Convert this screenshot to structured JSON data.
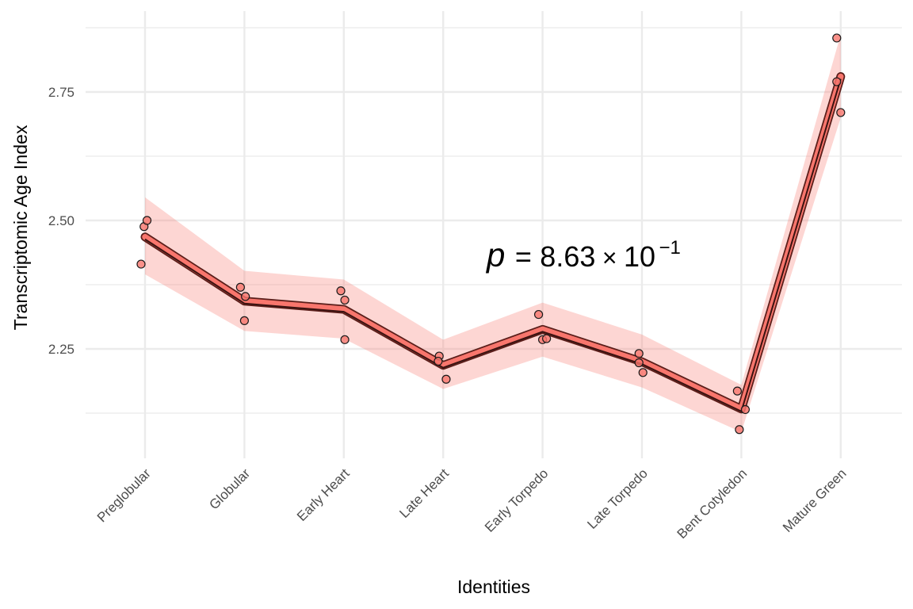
{
  "chart_data": {
    "type": "line",
    "xlabel": "Identities",
    "ylabel": "Transcriptomic Age Index",
    "categories": [
      "Preglobular",
      "Globular",
      "Early Heart",
      "Late Heart",
      "Early Torpedo",
      "Late Torpedo",
      "Bent Cotyledon",
      "Mature Green"
    ],
    "ylim": [
      2.08,
      2.92
    ],
    "yticks": [
      2.25,
      2.5,
      2.75
    ],
    "ytick_labels": [
      "2.25",
      "2.50",
      "2.75"
    ],
    "grid": true,
    "legend": "none",
    "mean": [
      2.468,
      2.343,
      2.327,
      2.218,
      2.288,
      2.225,
      2.133,
      2.78
    ],
    "ribbon_lower": [
      2.395,
      2.285,
      2.27,
      2.172,
      2.235,
      2.175,
      2.088,
      2.7
    ],
    "ribbon_upper": [
      2.545,
      2.402,
      2.385,
      2.268,
      2.34,
      2.278,
      2.18,
      2.862
    ],
    "points": [
      {
        "x": 0,
        "y": 2.415,
        "jitter": -0.04
      },
      {
        "x": 0,
        "y": 2.488,
        "jitter": -0.01
      },
      {
        "x": 0,
        "y": 2.5,
        "jitter": 0.02
      },
      {
        "x": 1,
        "y": 2.37,
        "jitter": -0.04
      },
      {
        "x": 1,
        "y": 2.352,
        "jitter": 0.01
      },
      {
        "x": 1,
        "y": 2.305,
        "jitter": 0.0
      },
      {
        "x": 2,
        "y": 2.363,
        "jitter": -0.03
      },
      {
        "x": 2,
        "y": 2.345,
        "jitter": 0.01
      },
      {
        "x": 2,
        "y": 2.268,
        "jitter": 0.01
      },
      {
        "x": 3,
        "y": 2.236,
        "jitter": -0.04
      },
      {
        "x": 3,
        "y": 2.226,
        "jitter": -0.05
      },
      {
        "x": 3,
        "y": 2.191,
        "jitter": 0.03
      },
      {
        "x": 4,
        "y": 2.317,
        "jitter": -0.04
      },
      {
        "x": 4,
        "y": 2.268,
        "jitter": 0.0
      },
      {
        "x": 4,
        "y": 2.27,
        "jitter": 0.04
      },
      {
        "x": 5,
        "y": 2.241,
        "jitter": -0.03
      },
      {
        "x": 5,
        "y": 2.223,
        "jitter": -0.03
      },
      {
        "x": 5,
        "y": 2.204,
        "jitter": 0.01
      },
      {
        "x": 6,
        "y": 2.168,
        "jitter": -0.04
      },
      {
        "x": 6,
        "y": 2.132,
        "jitter": 0.04
      },
      {
        "x": 6,
        "y": 2.093,
        "jitter": -0.02
      },
      {
        "x": 7,
        "y": 2.855,
        "jitter": -0.04
      },
      {
        "x": 7,
        "y": 2.77,
        "jitter": -0.04
      },
      {
        "x": 7,
        "y": 2.71,
        "jitter": 0.0
      }
    ],
    "annotation": {
      "label": "p",
      "equals": "=",
      "mantissa": "8.63",
      "times": "×",
      "base": "10",
      "exponent": "−1"
    },
    "colors": {
      "accent": "#f8766d",
      "ribbon": "#f8766d",
      "line": "#000000",
      "grid": "#ebebeb"
    }
  }
}
